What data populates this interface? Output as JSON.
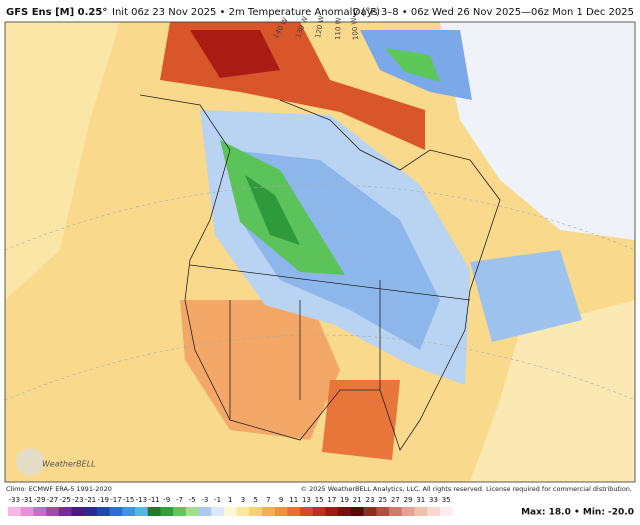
{
  "header": {
    "model": "GFS Ens [M] 0.25°",
    "init": "Init 06z 23 Nov 2025 • 2m Temperature Anomaly (°F)",
    "period": "Days 3–8 • 06z Wed 26 Nov 2025—06z Mon 1 Dec 2025"
  },
  "map": {
    "longitude_labels": [
      "140 W",
      "130 W",
      "120 W",
      "110 W",
      "100 W"
    ],
    "logo": "WeatherBELL"
  },
  "footer": {
    "climo": "Climo: ECMWF ERA-5 1991-2020",
    "copyright": "© 2025 WeatherBELL Analytics, LLC. All rights reserved. License required for commercial distribution.",
    "max_min": "Max: 18.0 • Min: -20.0"
  },
  "colorbar": {
    "labels": [
      "-33",
      "-31",
      "-29",
      "-27",
      "-25",
      "-23",
      "-21",
      "-19",
      "-17",
      "-15",
      "-13",
      "-11",
      "-9",
      "-7",
      "-5",
      "-3",
      "-1",
      "1",
      "3",
      "5",
      "7",
      "9",
      "11",
      "13",
      "15",
      "17",
      "19",
      "21",
      "23",
      "25",
      "27",
      "29",
      "31",
      "33",
      "35"
    ],
    "colors": [
      "#f7b7e6",
      "#e98fd9",
      "#c86cc8",
      "#a04ab0",
      "#7a2a98",
      "#4b1a7e",
      "#2a2a90",
      "#2046b0",
      "#2a6fd0",
      "#3b95e0",
      "#52b8ea",
      "#1e7d28",
      "#2fa03a",
      "#5cc85a",
      "#9ee08e",
      "#a8c8f0",
      "#dbe8f8",
      "#fff8d8",
      "#fbe8a0",
      "#f9d070",
      "#f6b050",
      "#f19040",
      "#ea6d30",
      "#d94a22",
      "#c0301a",
      "#a01a12",
      "#7a0e0c",
      "#5a0806",
      "#8a3020",
      "#b05040",
      "#d07a6a",
      "#e8a090",
      "#f0c0b0",
      "#f8d8d0",
      "#fcecec"
    ]
  }
}
